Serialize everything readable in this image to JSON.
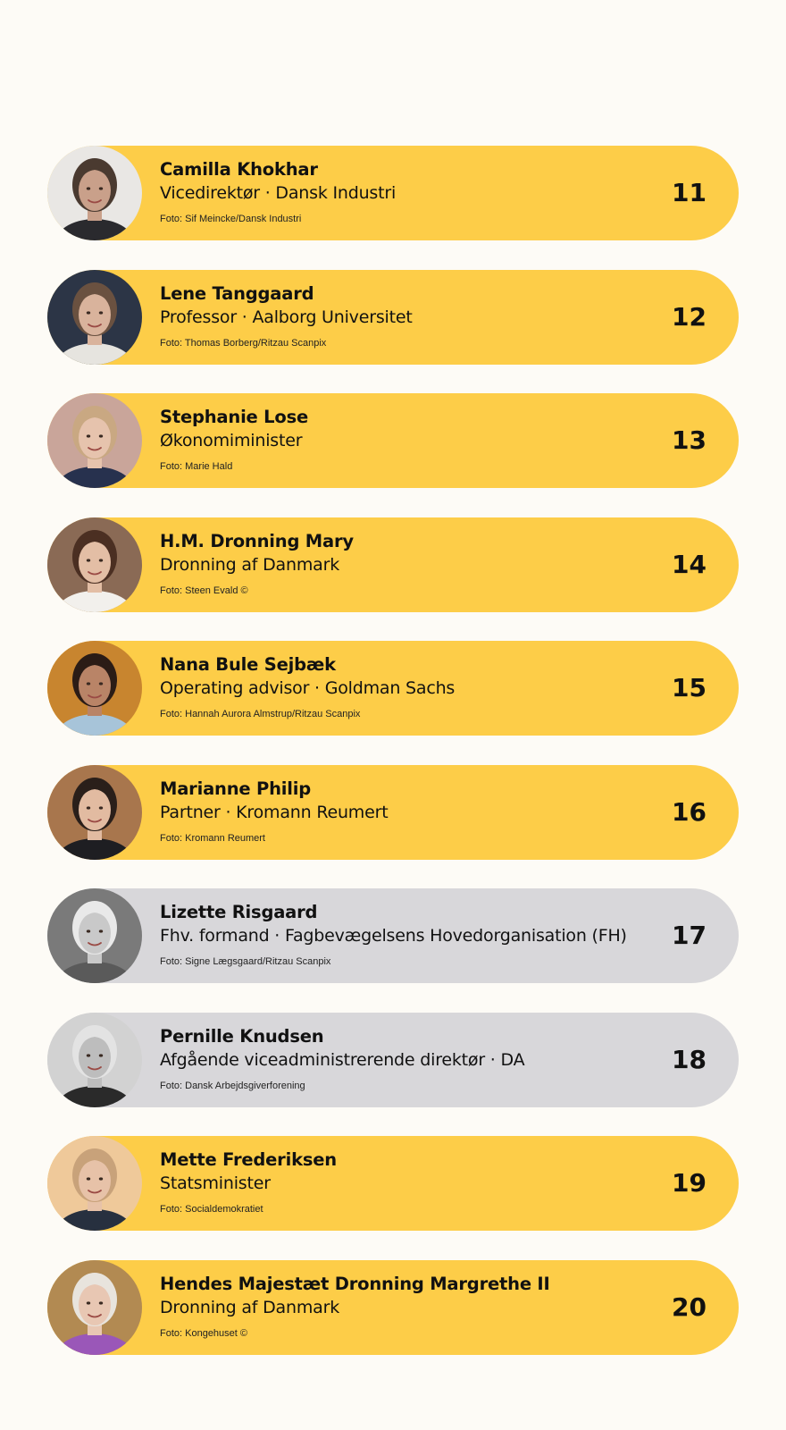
{
  "entries": [
    {
      "name": "Camilla Khokhar",
      "role": "Vicedirektør · Dansk Industri",
      "credit": "Foto:  Sif Meincke/Dansk Industri",
      "rank": "11",
      "card_color": "#fdcd48",
      "photo": {
        "bg": "#e9e7e4",
        "skin": "#c9a08a",
        "hair": "#4a3a30",
        "cloth": "#2a2a2e",
        "grey": false
      }
    },
    {
      "name": "Lene Tanggaard",
      "role": "Professor · Aalborg Universitet",
      "credit": "Foto: Thomas Borberg/Ritzau Scanpix",
      "rank": "12",
      "card_color": "#fdcd48",
      "photo": {
        "bg": "#2c3546",
        "skin": "#d9b39c",
        "hair": "#6a5140",
        "cloth": "#e6e4df",
        "grey": false
      }
    },
    {
      "name": "Stephanie Lose",
      "role": "Økonomiminister",
      "credit": "Foto: Marie Hald",
      "rank": "13",
      "card_color": "#fdcd48",
      "photo": {
        "bg": "#c9a59a",
        "skin": "#e6c3ad",
        "hair": "#c9a882",
        "cloth": "#27314e",
        "grey": false
      }
    },
    {
      "name": "H.M. Dronning Mary",
      "role": "Dronning af Danmark",
      "credit": "Foto: Steen Evald ©",
      "rank": "14",
      "card_color": "#fdcd48",
      "photo": {
        "bg": "#8a6a55",
        "skin": "#e3bea5",
        "hair": "#4b2f22",
        "cloth": "#f2f0ec",
        "grey": false
      }
    },
    {
      "name": "Nana Bule Sejbæk",
      "role": "Operating advisor · Goldman Sachs",
      "credit": "Foto: Hannah Aurora Almstrup/Ritzau Scanpix",
      "rank": "15",
      "card_color": "#fdcd48",
      "photo": {
        "bg": "#c8852f",
        "skin": "#b98467",
        "hair": "#2b1c16",
        "cloth": "#a7c4d9",
        "grey": false
      }
    },
    {
      "name": "Marianne Philip",
      "role": "Partner · Kromann Reumert",
      "credit": "Foto: Kromann Reumert",
      "rank": "16",
      "card_color": "#fdcd48",
      "photo": {
        "bg": "#a8764d",
        "skin": "#e2bba1",
        "hair": "#2a1f1a",
        "cloth": "#1e1e22",
        "grey": false
      }
    },
    {
      "name": "Lizette Risgaard",
      "role": "Fhv. formand · Fagbevægelsens Hovedorganisation (FH)",
      "credit": "Foto: Signe Lægsgaard/Ritzau Scanpix",
      "rank": "17",
      "card_color": "#d8d7da",
      "photo": {
        "bg": "#7a7a7a",
        "skin": "#c9c9c9",
        "hair": "#e9e9e9",
        "cloth": "#5a5a5a",
        "grey": true
      }
    },
    {
      "name": "Pernille Knudsen",
      "role": "Afgående viceadministrerende direktør · DA",
      "credit": "Foto: Dansk Arbejdsgiverforening",
      "rank": "18",
      "card_color": "#d8d7da",
      "photo": {
        "bg": "#d2d2d2",
        "skin": "#bdbdbd",
        "hair": "#e3e3e3",
        "cloth": "#2a2a2a",
        "grey": true
      }
    },
    {
      "name": "Mette Frederiksen",
      "role": "Statsminister",
      "credit": "Foto: Socialdemokratiet",
      "rank": "19",
      "card_color": "#fdcd48",
      "photo": {
        "bg": "#efc99a",
        "skin": "#e7c2a8",
        "hair": "#c8a27a",
        "cloth": "#27303f",
        "grey": false
      }
    },
    {
      "name": "Hendes Majestæt Dronning Margrethe II",
      "role": "Dronning af Danmark",
      "credit": "Foto: Kongehuset ©",
      "rank": "20",
      "card_color": "#fdcd48",
      "photo": {
        "bg": "#b28a52",
        "skin": "#e8c7b3",
        "hair": "#e8e4dd",
        "cloth": "#9a57b8",
        "grey": false
      }
    }
  ]
}
